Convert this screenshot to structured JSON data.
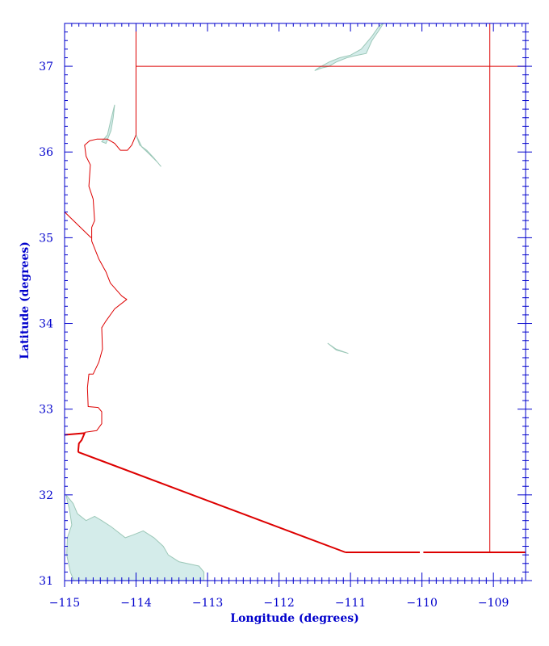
{
  "chart_data": {
    "type": "map",
    "xlabel": "Longitude (degrees)",
    "ylabel": "Latitude (degrees)",
    "xlim": [
      -115,
      -108.55
    ],
    "ylim": [
      31.0,
      37.5
    ],
    "xticks": [
      -115,
      -114,
      -113,
      -112,
      -111,
      -110,
      -109
    ],
    "xtick_labels": [
      "−115",
      "−114",
      "−113",
      "−112",
      "−111",
      "−110",
      "−109"
    ],
    "yticks": [
      31,
      32,
      33,
      34,
      35,
      36,
      37
    ],
    "ytick_labels": [
      "31",
      "32",
      "33",
      "34",
      "35",
      "36",
      "37"
    ],
    "colors": {
      "axis": "#0000cc",
      "border": "#dd0000",
      "water_fill": "#d4ecea",
      "water_stroke": "#9cc8b8"
    },
    "borders": [
      {
        "id": "nevada-utah-line",
        "points": [
          [
            -114.0,
            37.5
          ],
          [
            -114.0,
            36.2
          ]
        ]
      },
      {
        "id": "utah-arizona-line",
        "points": [
          [
            -114.0,
            37.0
          ],
          [
            -108.55,
            37.0
          ]
        ]
      },
      {
        "id": "new-mexico-line",
        "points": [
          [
            -109.05,
            37.5
          ],
          [
            -109.05,
            31.33
          ]
        ]
      },
      {
        "id": "california-nevada-line",
        "points": [
          [
            -115.0,
            35.3
          ],
          [
            -114.63,
            35.0
          ]
        ]
      },
      {
        "id": "arizona-west-border",
        "points": [
          [
            -114.0,
            36.2
          ],
          [
            -114.06,
            36.08
          ],
          [
            -114.12,
            36.02
          ],
          [
            -114.22,
            36.02
          ],
          [
            -114.3,
            36.1
          ],
          [
            -114.4,
            36.15
          ],
          [
            -114.55,
            36.15
          ],
          [
            -114.65,
            36.13
          ],
          [
            -114.72,
            36.08
          ],
          [
            -114.7,
            35.95
          ],
          [
            -114.64,
            35.85
          ],
          [
            -114.66,
            35.6
          ],
          [
            -114.6,
            35.45
          ],
          [
            -114.58,
            35.2
          ],
          [
            -114.62,
            35.12
          ],
          [
            -114.62,
            34.96
          ],
          [
            -114.52,
            34.75
          ],
          [
            -114.42,
            34.6
          ],
          [
            -114.36,
            34.47
          ],
          [
            -114.2,
            34.32
          ],
          [
            -114.13,
            34.28
          ],
          [
            -114.3,
            34.17
          ],
          [
            -114.42,
            34.03
          ],
          [
            -114.48,
            33.95
          ],
          [
            -114.47,
            33.7
          ],
          [
            -114.52,
            33.55
          ],
          [
            -114.6,
            33.41
          ],
          [
            -114.66,
            33.41
          ],
          [
            -114.68,
            33.25
          ],
          [
            -114.67,
            33.03
          ],
          [
            -114.53,
            33.02
          ],
          [
            -114.48,
            32.97
          ],
          [
            -114.48,
            32.83
          ],
          [
            -114.55,
            32.75
          ],
          [
            -114.72,
            32.73
          ]
        ]
      },
      {
        "id": "colorado-river-mexico",
        "points": [
          [
            -115.0,
            32.7
          ],
          [
            -114.72,
            32.72
          ],
          [
            -114.76,
            32.64
          ],
          [
            -114.8,
            32.6
          ],
          [
            -114.81,
            32.5
          ]
        ]
      },
      {
        "id": "mexico-border-diagonal",
        "points": [
          [
            -114.81,
            32.5
          ],
          [
            -111.07,
            31.33
          ]
        ]
      },
      {
        "id": "mexico-border-south-a",
        "points": [
          [
            -111.07,
            31.33
          ],
          [
            -110.03,
            31.33
          ]
        ]
      },
      {
        "id": "mexico-border-south-b",
        "points": [
          [
            -109.98,
            31.33
          ],
          [
            -108.55,
            31.33
          ]
        ]
      }
    ],
    "water_bodies": [
      {
        "id": "lake-powell",
        "points": [
          [
            -111.5,
            36.95
          ],
          [
            -111.4,
            36.98
          ],
          [
            -111.3,
            37.0
          ],
          [
            -111.2,
            37.05
          ],
          [
            -111.05,
            37.1
          ],
          [
            -110.95,
            37.12
          ],
          [
            -110.78,
            37.15
          ],
          [
            -110.7,
            37.3
          ],
          [
            -110.6,
            37.42
          ],
          [
            -110.54,
            37.5
          ],
          [
            -110.6,
            37.47
          ],
          [
            -110.7,
            37.35
          ],
          [
            -110.85,
            37.2
          ],
          [
            -111.0,
            37.13
          ],
          [
            -111.15,
            37.1
          ],
          [
            -111.3,
            37.05
          ],
          [
            -111.45,
            36.98
          ],
          [
            -111.5,
            36.95
          ]
        ]
      },
      {
        "id": "lake-mead",
        "points": [
          [
            -114.42,
            36.1
          ],
          [
            -114.35,
            36.25
          ],
          [
            -114.32,
            36.4
          ],
          [
            -114.3,
            36.55
          ],
          [
            -114.36,
            36.35
          ],
          [
            -114.4,
            36.2
          ],
          [
            -114.48,
            36.12
          ],
          [
            -114.42,
            36.1
          ]
        ]
      },
      {
        "id": "colorado-channel",
        "points": [
          [
            -114.0,
            36.2
          ],
          [
            -113.95,
            36.08
          ],
          [
            -113.85,
            36.02
          ],
          [
            -113.75,
            35.93
          ],
          [
            -113.65,
            35.83
          ],
          [
            -113.7,
            35.88
          ],
          [
            -113.82,
            35.98
          ],
          [
            -113.92,
            36.06
          ],
          [
            -114.0,
            36.2
          ]
        ]
      },
      {
        "id": "roosevelt-lake",
        "points": [
          [
            -111.32,
            33.77
          ],
          [
            -111.2,
            33.69
          ],
          [
            -111.03,
            33.65
          ],
          [
            -111.2,
            33.7
          ],
          [
            -111.32,
            33.77
          ]
        ]
      },
      {
        "id": "gulf-of-california",
        "points": [
          [
            -114.98,
            32.0
          ],
          [
            -114.93,
            31.82
          ],
          [
            -114.9,
            31.65
          ],
          [
            -114.96,
            31.5
          ],
          [
            -114.97,
            31.3
          ],
          [
            -114.92,
            31.1
          ],
          [
            -114.87,
            31.0
          ],
          [
            -113.05,
            31.0
          ],
          [
            -113.05,
            31.1
          ],
          [
            -113.12,
            31.17
          ],
          [
            -113.4,
            31.22
          ],
          [
            -113.55,
            31.3
          ],
          [
            -113.62,
            31.4
          ],
          [
            -113.75,
            31.5
          ],
          [
            -113.9,
            31.58
          ],
          [
            -114.05,
            31.53
          ],
          [
            -114.15,
            31.5
          ],
          [
            -114.35,
            31.63
          ],
          [
            -114.48,
            31.7
          ],
          [
            -114.58,
            31.75
          ],
          [
            -114.7,
            31.7
          ],
          [
            -114.82,
            31.78
          ],
          [
            -114.88,
            31.9
          ],
          [
            -114.98,
            32.0
          ]
        ]
      }
    ]
  }
}
